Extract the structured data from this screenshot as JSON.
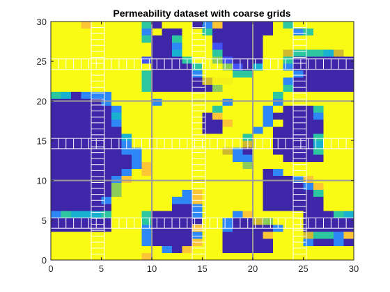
{
  "chart_data": {
    "type": "heatmap",
    "title": "Permeability dataset with coarse grids",
    "xlabel": "",
    "ylabel": "",
    "xlim": [
      0,
      30
    ],
    "ylim": [
      0,
      30
    ],
    "xticks": [
      0,
      5,
      10,
      15,
      20,
      25,
      30
    ],
    "yticks": [
      0,
      5,
      10,
      15,
      20,
      25,
      30
    ],
    "grid": false,
    "colormap": [
      "#3e26a8",
      "#4352f4",
      "#2e87f7",
      "#18b1d0",
      "#2cc79f",
      "#8ccc59",
      "#cfba2f",
      "#fbc536",
      "#f9fb15"
    ],
    "cell_colors": {
      "d": "#3e26a8",
      "e": "#4352f4",
      "f": "#2e87f7",
      "g": "#18b1d0",
      "h": "#2cc79f",
      "i": "#8ccc59",
      "j": "#cfba2f",
      "k": "#fbc536",
      "y": "#f9fb15",
      "z": "#f5f21a"
    },
    "rows_top_to_bottom": [
      "yyykyyyyyhdyyydfkdddddyhyyyyyy",
      "yyyyyyyyyfyddyyhddddddyyfhyyyy",
      "yyyyyyyyyhddhyyydddddyyyyyyyyy",
      "yyyyyyyyyyddfyyyeddddyyyyyyyyy",
      "yyyyyyyyyyddgyyyhddddyyjhhhgjy",
      "yyyyyyyyyedddhyyiedddyyhdddddd",
      "yyyyyyyyyyddddhyyiedgyyfdddddd",
      "yyyyyyyyyhddddfyyyhhyyyyfddddd",
      "yyyyyyyyyhdddddjzzyyyyyfdddddd",
      "yyyyyyyyyhddddddiyyyyyyhdddddd",
      "hgdfffyyyyyyyyyyyyyyyyhyyyyyyy",
      "dddddfyyyyfyyyyyyfyyyyfyyyyyyy",
      "ddddddfyyyyyyyyyhyyyyfydddhyyy",
      "ddddddgyyyyyyyydkyyyyfddddfyyy",
      "ddddddfyyyyyyyyddkyyyfyddddyyy",
      "dddddddyyyyyyyyddyyyfydddddyyy",
      "dddddddgyyyyyyyyyyyhyyddddhyyy",
      "dddddddfyyyyyyyyyyyjyyddddgyyy",
      "dddddddffyyyyyyyyjfdyyddddhyyy",
      "ddddddddfyyyyyyyyyffyyyddddyyy",
      "ddddddddfkyyyyyyyyyiyyyyyyyyyy",
      "dddddddfykyyyyyyyyyyydfyyyyyyy",
      "ddddddfkyyyyyyyyyyyyydddfkyyyy",
      "ddddddiyyyyyyyyyyyyyyddddfkyyy",
      "ddddddiyyyyyyfkyyyyyydddddhyyy",
      "dddddfyyyyyyffkyyyyyyddddddyyy",
      "ddddddyyyyyyddfyyyyyyddddddyyy",
      "fhggghyyyhddddfyyyfkyyyyydddhg",
      "ddddddyyyhdddddyyfddjiyyyddddd",
      "ddddddyyyfddddkyyfddddfyyddddd",
      "yyyyyyyyyfddddfyyddddkyyyjhhfk",
      "yyyyyyyyyfddddkyydddddyyyfddfd",
      "yyyyyyyyyyyfdkyyydddddyyyyyyyy",
      "yyyyyyyyykyyyyyyyyyyyyyyyyyyyy"
    ]
  }
}
